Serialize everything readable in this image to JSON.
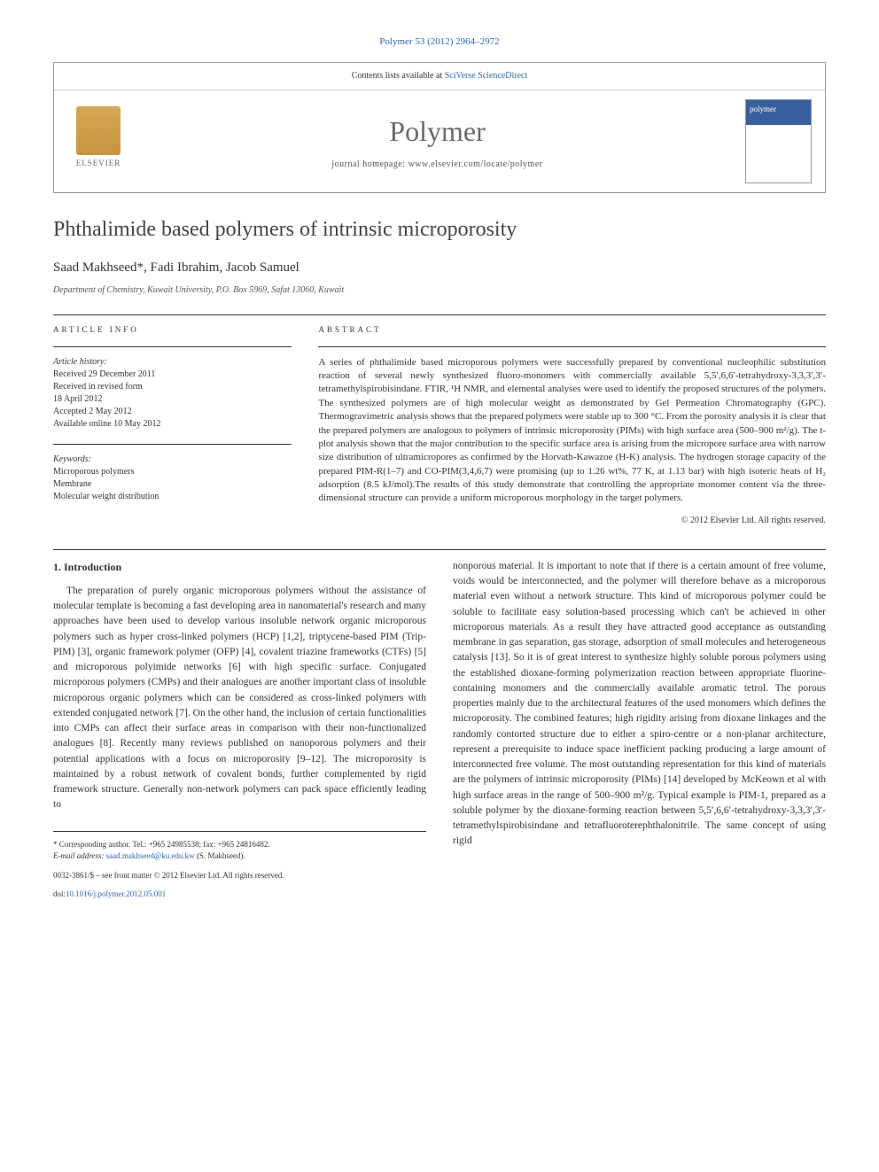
{
  "citation": "Polymer 53 (2012) 2964–2972",
  "header": {
    "contents_line_pre": "Contents lists available at ",
    "contents_link": "SciVerse ScienceDirect",
    "journal_name": "Polymer",
    "homepage_pre": "journal homepage: ",
    "homepage_url": "www.elsevier.com/locate/polymer",
    "elsevier_label": "ELSEVIER",
    "cover_label": "polymer"
  },
  "article": {
    "title": "Phthalimide based polymers of intrinsic microporosity",
    "authors": "Saad Makhseed*, Fadi Ibrahim, Jacob Samuel",
    "affiliation": "Department of Chemistry, Kuwait University, P.O. Box 5969, Safat 13060, Kuwait"
  },
  "info": {
    "section_label": "ARTICLE INFO",
    "history_heading": "Article history:",
    "received": "Received 29 December 2011",
    "revised": "Received in revised form\n18 April 2012",
    "accepted": "Accepted 2 May 2012",
    "online": "Available online 10 May 2012",
    "keywords_heading": "Keywords:",
    "kw1": "Microporous polymers",
    "kw2": "Membrane",
    "kw3": "Molecular weight distribution"
  },
  "abstract": {
    "section_label": "ABSTRACT",
    "text": "A series of phthalimide based microporous polymers were successfully prepared by conventional nucleophilic substitution reaction of several newly synthesized fluoro-monomers with commercially available 5,5′,6,6′-tetrahydroxy-3,3,3′,3′-tetramethylspirobisindane. FTIR, ¹H NMR, and elemental analyses were used to identify the proposed structures of the polymers. The synthesized polymers are of high molecular weight as demonstrated by Gel Permeation Chromatography (GPC). Thermogravimetric analysis shows that the prepared polymers were stable up to 300 °C. From the porosity analysis it is clear that the prepared polymers are analogous to polymers of intrinsic microporosity (PIMs) with high surface area (500–900 m²/g). The t-plot analysis shown that the major contribution to the specific surface area is arising from the micropore surface area with narrow size distribution of ultramicropores as confirmed by the Horvath-Kawazoe (H-K) analysis. The hydrogen storage capacity of the prepared PIM-R(1–7) and CO-PIM(3,4,6,7) were promising (up to 1.26 wt%, 77 K, at 1.13 bar) with high isoteric heats of H₂ adsorption (8.5 kJ/mol).The results of this study demonstrate that controlling the appropriate monomer content via the three-dimensional structure can provide a uniform microporous morphology in the target polymers.",
    "copyright": "© 2012 Elsevier Ltd. All rights reserved."
  },
  "body": {
    "intro_heading": "1. Introduction",
    "col1_text": "The preparation of purely organic microporous polymers without the assistance of molecular template is becoming a fast developing area in nanomaterial's research and many approaches have been used to develop various insoluble network organic microporous polymers such as hyper cross-linked polymers (HCP) [1,2], triptycene-based PIM (Trip-PIM) [3], organic framework polymer (OFP) [4], covalent triazine frameworks (CTFs) [5] and microporous polyimide networks [6] with high specific surface. Conjugated microporous polymers (CMPs) and their analogues are another important class of insoluble microporous organic polymers which can be considered as cross-linked polymers with extended conjugated network [7]. On the other hand, the inclusion of certain functionalities into CMPs can affect their surface areas in comparison with their non-functionalized analogues [8]. Recently many reviews published on nanoporous polymers and their potential applications with a focus on microporosity [9–12]. The microporosity is maintained by a robust network of covalent bonds, further complemented by rigid framework structure. Generally non-network polymers can pack space efficiently leading to",
    "col2_text": "nonporous material. It is important to note that if there is a certain amount of free volume, voids would be interconnected, and the polymer will therefore behave as a microporous material even without a network structure. This kind of microporous polymer could be soluble to facilitate easy solution-based processing which can't be achieved in other microporous materials. As a result they have attracted good acceptance as outstanding membrane in gas separation, gas storage, adsorption of small molecules and heterogeneous catalysis [13]. So it is of great interest to synthesize highly soluble porous polymers using the established dioxane-forming polymerization reaction between appropriate fluorine-containing monomers and the commercially available aromatic tetrol. The porous properties mainly due to the architectural features of the used monomers which defines the microporosity. The combined features; high rigidity arising from dioxane linkages and the randomly contorted structure due to either a spiro-centre or a non-planar architecture, represent a prerequisite to induce space inefficient packing producing a large amount of interconnected free volume. The most outstanding representation for this kind of materials are the polymers of intrinsic microporosity (PIMs) [14] developed by McKeown et al with high surface areas in the range of 500–900 m²/g. Typical example is PIM-1, prepared as a soluble polymer by the dioxane-forming reaction between 5,5′,6,6′-tetrahydroxy-3,3,3′,3′-tetramethylspirobisindane and tetrafluoroterephthalonitrile. The same concept of using rigid"
  },
  "footer": {
    "corresp": "* Corresponding author. Tel.: +965 24985538; fax: +965 24816482.",
    "email_label": "E-mail address: ",
    "email": "saad.makhseed@ku.edu.kw",
    "email_name": " (S. Makhseed).",
    "issn_line": "0032-3861/$ – see front matter © 2012 Elsevier Ltd. All rights reserved.",
    "doi_pre": "doi:",
    "doi": "10.1016/j.polymer.2012.05.001"
  },
  "colors": {
    "link": "#3366aa",
    "text": "#333333",
    "heading": "#444444",
    "border": "#999999"
  }
}
